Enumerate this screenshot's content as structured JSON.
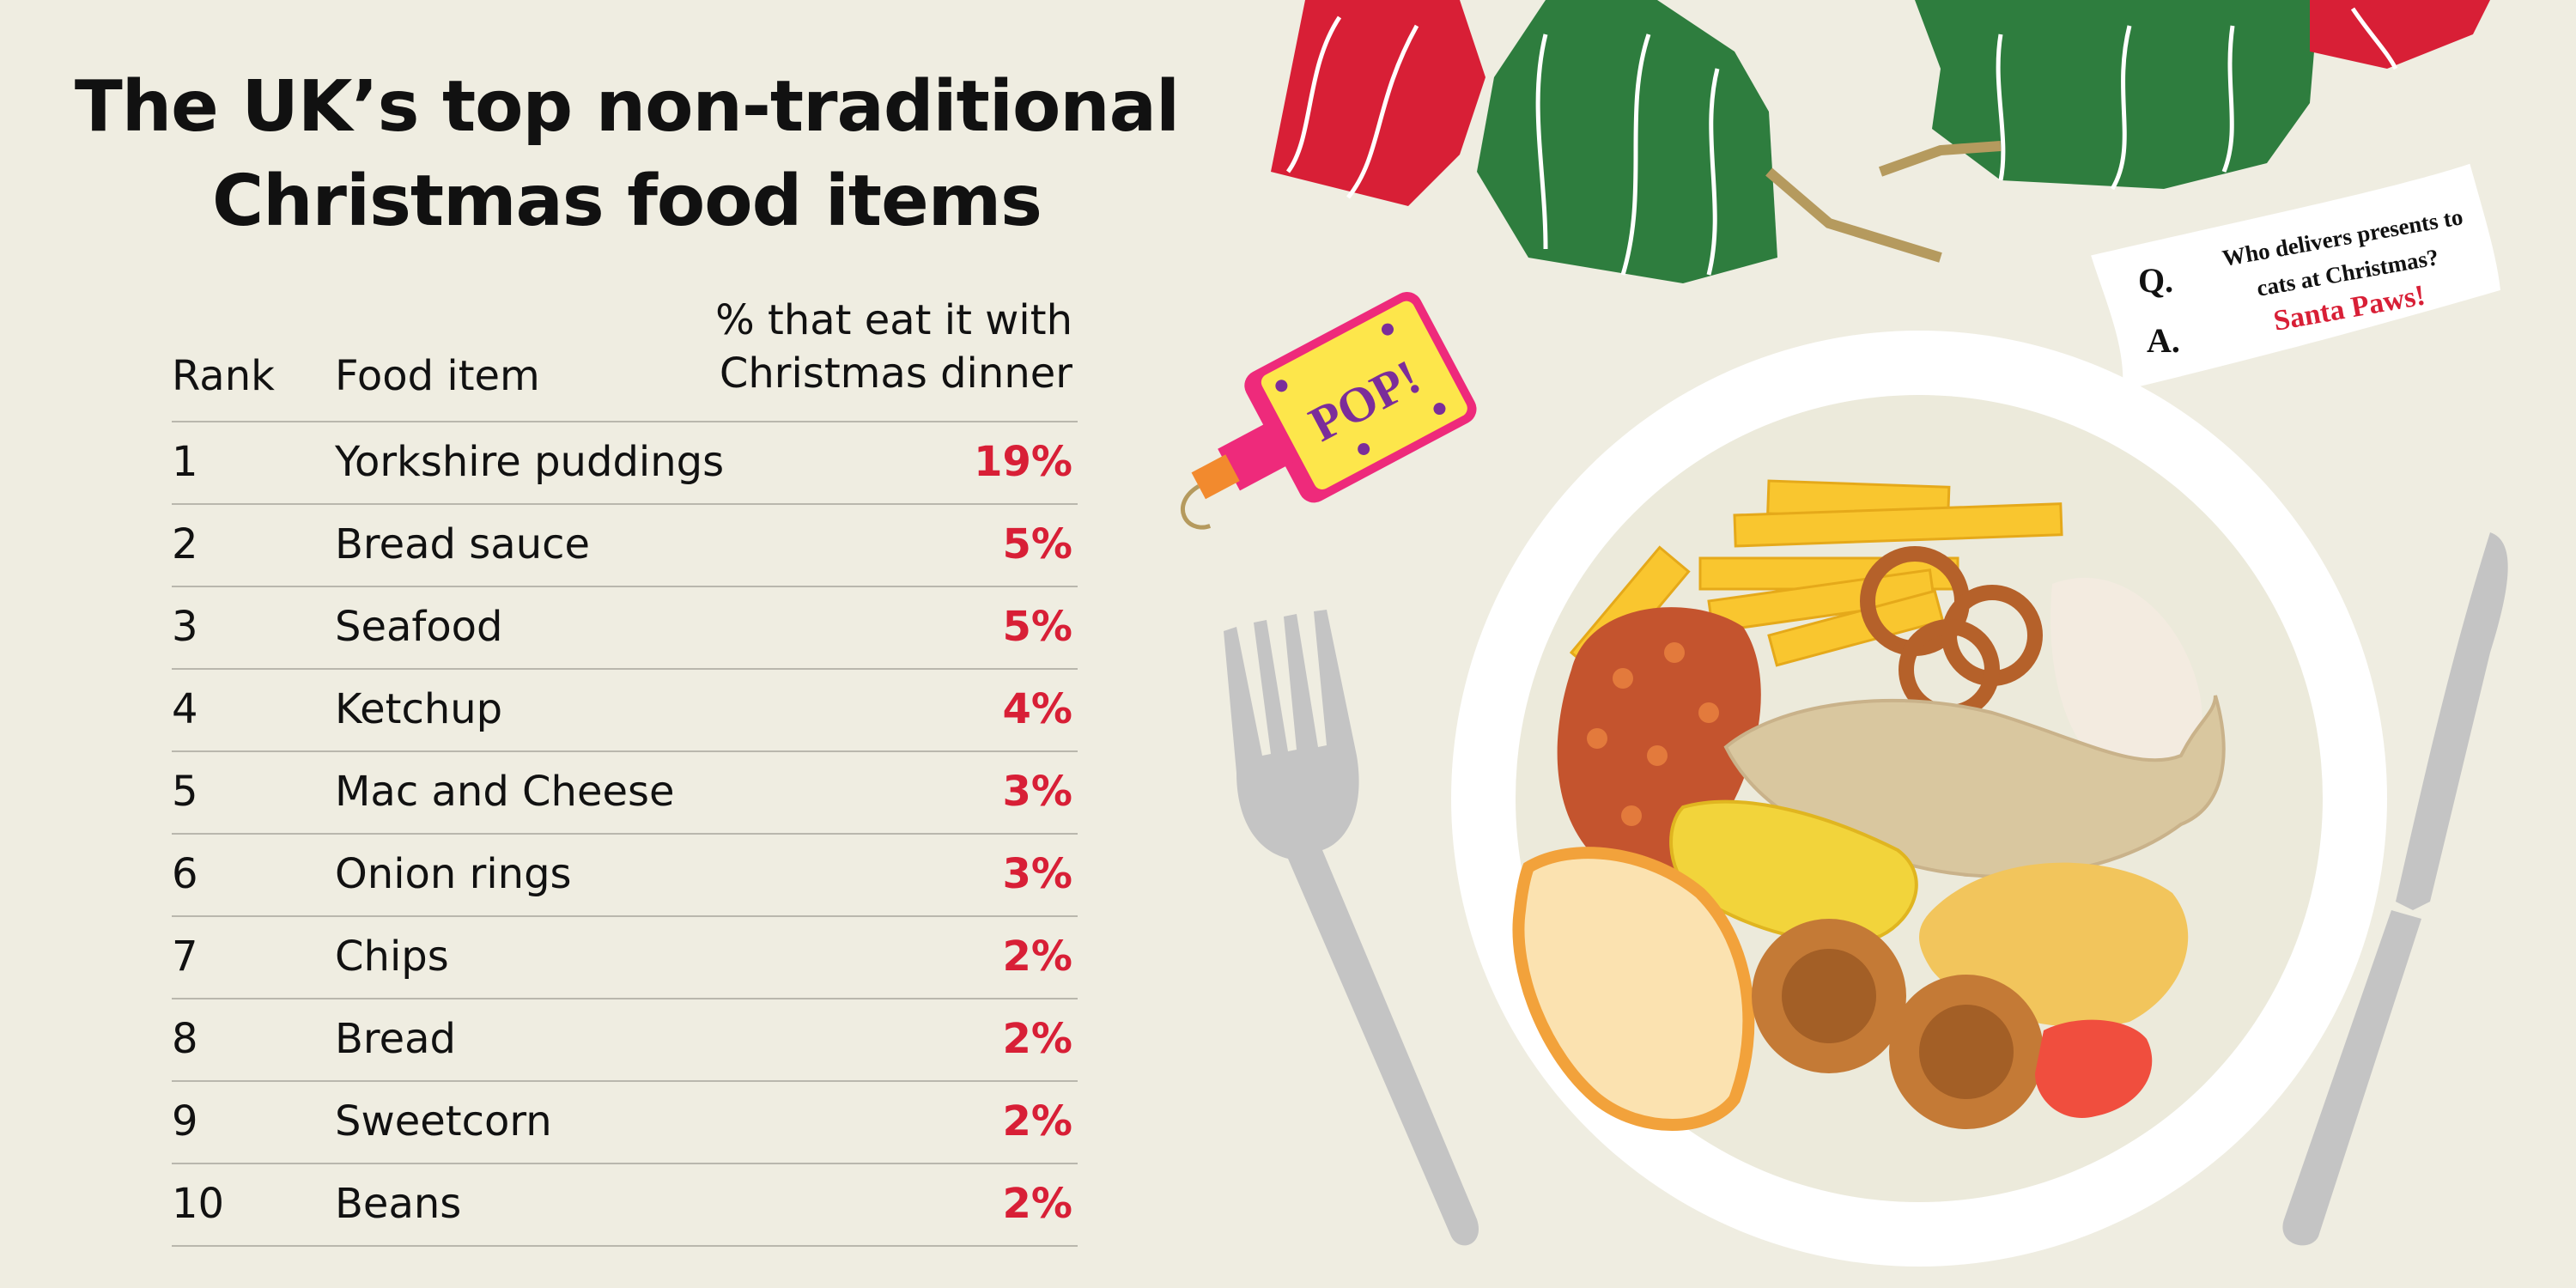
{
  "title": {
    "line1": "The UK’s top non-traditional",
    "line2": "Christmas food items"
  },
  "table": {
    "headers": {
      "rank": "Rank",
      "food": "Food item",
      "pct_line1": "% that eat it with",
      "pct_line2": "Christmas dinner"
    }
  },
  "chart_data": {
    "type": "table",
    "title": "The UK’s top non-traditional Christmas food items",
    "columns": [
      "Rank",
      "Food item",
      "% that eat it with Christmas dinner"
    ],
    "rows": [
      {
        "rank": "1",
        "food": "Yorkshire puddings",
        "pct": "19%"
      },
      {
        "rank": "2",
        "food": "Bread sauce",
        "pct": "5%"
      },
      {
        "rank": "3",
        "food": "Seafood",
        "pct": "5%"
      },
      {
        "rank": "4",
        "food": "Ketchup",
        "pct": "4%"
      },
      {
        "rank": "5",
        "food": "Mac and Cheese",
        "pct": "3%"
      },
      {
        "rank": "6",
        "food": "Onion rings",
        "pct": "3%"
      },
      {
        "rank": "7",
        "food": "Chips",
        "pct": "2%"
      },
      {
        "rank": "8",
        "food": "Bread",
        "pct": "2%"
      },
      {
        "rank": "9",
        "food": "Sweetcorn",
        "pct": "2%"
      },
      {
        "rank": "10",
        "food": "Beans",
        "pct": "2%"
      }
    ]
  },
  "illustration": {
    "cracker_label": "POP!",
    "joke": {
      "q_marker": "Q.",
      "a_marker": "A.",
      "question_line1": "Who delivers presents to",
      "question_line2": "cats at Christmas?",
      "answer": "Santa Paws!"
    }
  },
  "colors": {
    "background": "#efede1",
    "accent_red": "#d81f36",
    "cracker_green": "#2e7d3e",
    "plate": "#ffffff"
  }
}
